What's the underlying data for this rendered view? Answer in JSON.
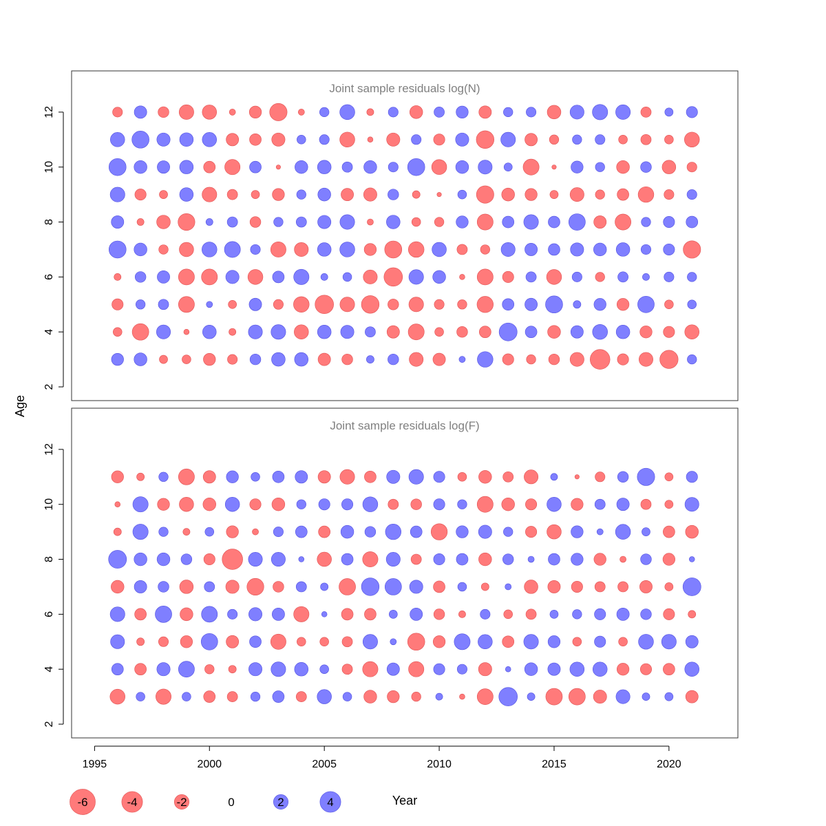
{
  "chart_data": {
    "type": "scatter",
    "xlabel": "Year",
    "ylabel": "Age",
    "xlim": [
      1994,
      2023
    ],
    "x_ticks": [
      1995,
      2000,
      2005,
      2010,
      2015,
      2020
    ],
    "colors": {
      "negative": "#ff7a7a",
      "positive": "#7f7fff"
    },
    "legend": {
      "values": [
        -6,
        -4,
        -2,
        0,
        2,
        4
      ],
      "placement": "bottom"
    },
    "panels": [
      {
        "title": "Joint sample residuals log(N)",
        "ylim": [
          1.5,
          13.5
        ],
        "y_ticks": [
          2,
          4,
          6,
          8,
          10,
          12
        ],
        "years": [
          1996,
          1997,
          1998,
          1999,
          2000,
          2001,
          2002,
          2003,
          2004,
          2005,
          2006,
          2007,
          2008,
          2009,
          2010,
          2011,
          2012,
          2013,
          2014,
          2015,
          2016,
          2017,
          2018,
          2019,
          2020,
          2021
        ],
        "ages": [
          3,
          4,
          5,
          6,
          7,
          8,
          9,
          10,
          11,
          12
        ],
        "residuals": [
          [
            1.5,
            1.7,
            -0.7,
            -0.8,
            -1.5,
            -1.0,
            1.2,
            1.9,
            1.9,
            -1.6,
            -1.2,
            0.6,
            1.2,
            -2.0,
            -1.6,
            0.4,
            2.5,
            -1.3,
            -0.9,
            -1.2,
            -2.0,
            -4.0,
            -1.3,
            -2.0,
            -3.4,
            0.9
          ],
          [
            -0.8,
            -2.8,
            2.0,
            -0.3,
            1.9,
            -0.5,
            2.0,
            2.2,
            -2.1,
            1.9,
            1.8,
            1.1,
            -1.6,
            -2.6,
            -0.8,
            -1.2,
            -1.4,
            3.3,
            1.4,
            -1.7,
            1.6,
            2.3,
            1.9,
            -1.5,
            -1.3,
            -2.1
          ],
          [
            -1.3,
            0.9,
            1.1,
            -2.6,
            0.4,
            -0.7,
            1.6,
            -1.0,
            -2.5,
            -3.5,
            -2.2,
            -3.2,
            -1.2,
            -2.2,
            -1.0,
            -0.9,
            -2.7,
            1.4,
            1.6,
            3.0,
            0.6,
            1.5,
            -1.5,
            2.8,
            -0.8,
            0.8
          ],
          [
            -0.5,
            1.2,
            1.6,
            -2.6,
            -2.6,
            1.8,
            -2.3,
            1.4,
            2.4,
            0.5,
            0.8,
            -2.0,
            -3.5,
            2.2,
            1.7,
            -0.3,
            -2.6,
            -1.3,
            1.1,
            -2.3,
            1.0,
            -0.9,
            1.1,
            0.5,
            1.0,
            0.9
          ],
          [
            3.0,
            1.7,
            -0.9,
            -2.1,
            2.3,
            2.6,
            1.0,
            -2.4,
            -2.0,
            1.9,
            2.3,
            -1.5,
            -3.0,
            -2.5,
            2.1,
            -1.1,
            -0.9,
            2.0,
            1.6,
            1.4,
            1.8,
            1.7,
            1.9,
            1.0,
            1.3,
            -3.1
          ],
          [
            1.6,
            -0.5,
            -1.9,
            -2.9,
            0.5,
            1.1,
            -1.2,
            0.9,
            1.1,
            1.8,
            2.2,
            -0.4,
            1.9,
            -0.8,
            -0.9,
            1.5,
            -2.6,
            1.4,
            2.2,
            1.4,
            2.8,
            -1.6,
            -2.6,
            0.9,
            1.3,
            1.4
          ],
          [
            2.2,
            -1.3,
            -0.7,
            1.9,
            -2.2,
            -1.1,
            -0.7,
            -1.5,
            0.9,
            1.7,
            -1.6,
            -1.8,
            1.2,
            -0.6,
            -0.2,
            0.8,
            -3.1,
            -1.7,
            -1.5,
            -0.7,
            -2.0,
            -0.9,
            -1.4,
            -2.5,
            -1.0,
            1.0
          ],
          [
            3.0,
            1.7,
            1.6,
            1.9,
            -1.4,
            -2.4,
            1.4,
            -0.2,
            1.7,
            1.9,
            1.1,
            1.7,
            1.0,
            3.0,
            -2.3,
            1.7,
            2.0,
            0.7,
            -2.6,
            -0.2,
            1.5,
            0.9,
            -1.7,
            1.2,
            -1.9,
            -1.0
          ],
          [
            2.1,
            3.0,
            1.8,
            1.9,
            2.1,
            -1.6,
            -1.4,
            -1.8,
            0.8,
            1.0,
            -2.3,
            -0.3,
            -1.8,
            1.0,
            -1.3,
            1.8,
            -3.2,
            2.2,
            -1.6,
            -0.9,
            0.9,
            1.0,
            -0.8,
            -1.1,
            -0.8,
            -2.3
          ],
          [
            -1.0,
            1.6,
            -1.2,
            -2.2,
            -2.1,
            -0.4,
            -1.5,
            -3.1,
            -0.4,
            0.9,
            2.3,
            -0.5,
            1.0,
            -1.7,
            1.1,
            1.5,
            -1.6,
            0.9,
            1.0,
            -1.9,
            2.0,
            2.4,
            2.2,
            -1.1,
            0.7,
            1.3
          ]
        ]
      },
      {
        "title": "Joint sample residuals log(F)",
        "ylim": [
          1.5,
          13.5
        ],
        "y_ticks": [
          2,
          4,
          6,
          8,
          10,
          12
        ],
        "years": [
          1996,
          1997,
          1998,
          1999,
          2000,
          2001,
          2002,
          2003,
          2004,
          2005,
          2006,
          2007,
          2008,
          2009,
          2010,
          2011,
          2012,
          2013,
          2014,
          2015,
          2016,
          2017,
          2018,
          2019,
          2020,
          2021
        ],
        "ages": [
          3,
          4,
          5,
          6,
          7,
          8,
          9,
          10,
          11
        ],
        "residuals": [
          [
            -2.3,
            0.8,
            -2.4,
            0.8,
            -1.4,
            -1.1,
            0.9,
            1.4,
            -1.1,
            2.1,
            0.8,
            -1.7,
            -1.5,
            -0.9,
            0.5,
            -0.3,
            -2.6,
            3.5,
            0.6,
            -2.8,
            -2.8,
            -1.8,
            2.0,
            0.6,
            0.7,
            -1.6
          ],
          [
            1.4,
            -1.4,
            1.8,
            2.6,
            -0.9,
            -0.6,
            1.8,
            2.2,
            1.9,
            0.8,
            -1.1,
            -2.4,
            1.6,
            -2.4,
            1.3,
            1.0,
            -1.8,
            0.3,
            1.7,
            1.6,
            2.1,
            2.1,
            -1.5,
            -1.3,
            -1.4,
            2.1
          ],
          [
            2.0,
            -0.6,
            -1.0,
            -1.5,
            2.8,
            -1.6,
            1.4,
            -2.4,
            -0.8,
            -0.8,
            -1.1,
            2.2,
            0.4,
            -3.0,
            -1.5,
            2.6,
            2.1,
            -1.4,
            2.2,
            1.5,
            -0.8,
            1.3,
            -0.8,
            2.3,
            2.2,
            1.6
          ],
          [
            2.2,
            -1.4,
            2.8,
            -1.7,
            2.6,
            1.0,
            1.8,
            1.6,
            -2.4,
            0.3,
            -1.4,
            -1.4,
            0.7,
            1.6,
            -1.2,
            -0.5,
            1.0,
            -0.8,
            -1.1,
            0.7,
            0.9,
            1.3,
            1.6,
            1.2,
            -1.3,
            -0.6
          ],
          [
            -1.7,
            1.6,
            1.2,
            -1.9,
            1.1,
            -1.8,
            -2.9,
            -1.2,
            1.1,
            0.6,
            -2.8,
            3.2,
            2.8,
            1.8,
            -1.4,
            0.8,
            -0.6,
            0.4,
            -1.9,
            -1.6,
            -1.3,
            -1.1,
            -1.1,
            -1.6,
            -0.7,
            3.3
          ],
          [
            3.3,
            1.7,
            1.7,
            1.2,
            -1.3,
            -4.3,
            2.0,
            2.0,
            0.3,
            -2.1,
            1.4,
            -2.4,
            2.0,
            -1.1,
            1.3,
            1.4,
            -1.7,
            1.2,
            0.4,
            1.4,
            1.5,
            -1.5,
            -0.4,
            1.2,
            -1.5,
            0.3
          ],
          [
            -0.6,
            2.4,
            0.9,
            -0.5,
            0.8,
            -1.5,
            -0.4,
            1.0,
            1.4,
            -1.4,
            1.7,
            1.2,
            2.5,
            1.4,
            -2.7,
            1.5,
            1.8,
            0.9,
            -1.3,
            -2.1,
            1.5,
            0.4,
            2.3,
            0.7,
            -1.4,
            -1.7
          ],
          [
            -0.3,
            2.4,
            -1.5,
            -2.1,
            -1.7,
            2.1,
            -1.3,
            -1.7,
            0.9,
            1.3,
            1.3,
            2.3,
            -1.1,
            -1.2,
            1.3,
            0.9,
            -2.6,
            -1.7,
            -1.3,
            2.1,
            -1.5,
            1.1,
            1.6,
            -1.1,
            -0.7,
            2.0
          ],
          [
            -1.5,
            -0.6,
            0.9,
            -2.6,
            -1.6,
            1.5,
            0.8,
            1.4,
            1.6,
            -1.6,
            -2.2,
            -1.4,
            1.8,
            2.2,
            1.3,
            -0.8,
            -1.7,
            -1.1,
            -2.0,
            0.5,
            -0.2,
            -1.0,
            1.2,
            3.1,
            -0.7,
            1.3
          ]
        ]
      }
    ]
  }
}
